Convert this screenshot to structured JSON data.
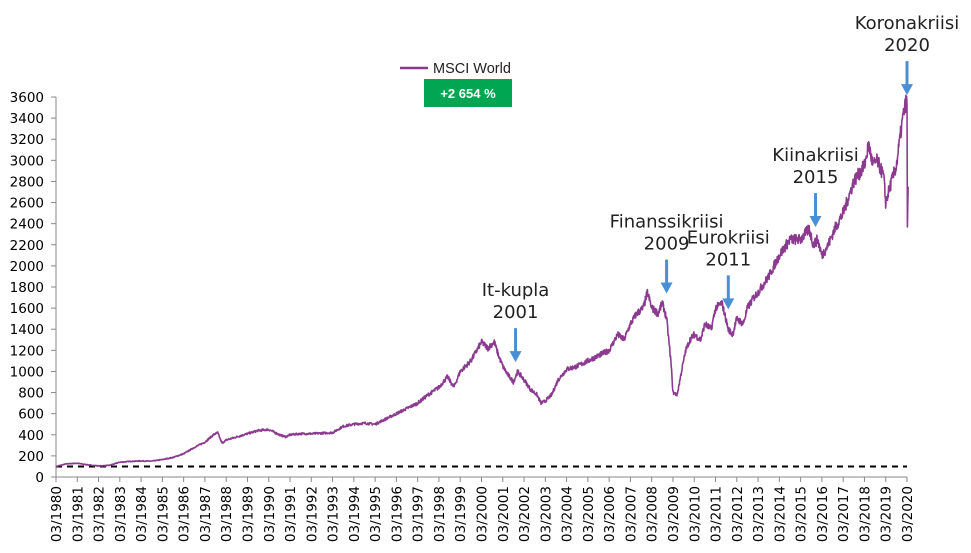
{
  "chart_data": {
    "type": "line",
    "title": "",
    "xlabel": "",
    "ylabel": "",
    "ylim": [
      0,
      3600
    ],
    "yticks": [
      0,
      200,
      400,
      600,
      800,
      1000,
      1200,
      1400,
      1600,
      1800,
      2000,
      2200,
      2400,
      2600,
      2800,
      3000,
      3200,
      3400,
      3600
    ],
    "xlim": [
      1980.0,
      2020.0
    ],
    "x_tick_labels": [
      "03/1980",
      "03/1981",
      "03/1982",
      "03/1983",
      "03/1984",
      "03/1985",
      "03/1986",
      "03/1987",
      "03/1988",
      "03/1989",
      "03/1990",
      "03/1991",
      "03/1992",
      "03/1993",
      "03/1994",
      "03/1995",
      "03/1996",
      "03/1997",
      "03/1998",
      "03/1999",
      "03/2000",
      "03/2001",
      "03/2002",
      "03/2003",
      "03/2004",
      "03/2005",
      "03/2006",
      "03/2007",
      "03/2008",
      "03/2009",
      "03/2010",
      "03/2011",
      "03/2012",
      "03/2013",
      "03/2014",
      "03/2015",
      "03/2016",
      "03/2017",
      "03/2018",
      "03/2019",
      "03/2020"
    ],
    "legend": {
      "position": "top-center",
      "label": "MSCI World"
    },
    "badge": {
      "text": "+2 654 %",
      "color": "#00a651"
    },
    "baseline": {
      "value": 100,
      "style": "dashed"
    },
    "colors": {
      "series": "#8b3a8f",
      "arrow": "#4a8fd6",
      "baseline": "#000000"
    },
    "series": [
      {
        "name": "MSCI World",
        "x": [
          1980.0,
          1980.5,
          1981.0,
          1981.5,
          1982.0,
          1982.5,
          1983.0,
          1983.5,
          1984.0,
          1984.5,
          1985.0,
          1985.5,
          1986.0,
          1986.5,
          1987.0,
          1987.4,
          1987.6,
          1987.8,
          1988.0,
          1988.5,
          1989.0,
          1989.5,
          1990.0,
          1990.5,
          1990.8,
          1991.0,
          1991.5,
          1992.0,
          1992.5,
          1993.0,
          1993.5,
          1994.0,
          1994.5,
          1995.0,
          1995.5,
          1996.0,
          1996.5,
          1997.0,
          1997.5,
          1998.0,
          1998.4,
          1998.7,
          1999.0,
          1999.5,
          2000.0,
          2000.3,
          2000.6,
          2000.8,
          2001.0,
          2001.2,
          2001.5,
          2001.7,
          2002.0,
          2002.3,
          2002.6,
          2002.8,
          2003.0,
          2003.3,
          2003.6,
          2004.0,
          2004.5,
          2005.0,
          2005.5,
          2006.0,
          2006.4,
          2006.7,
          2007.0,
          2007.3,
          2007.6,
          2007.8,
          2008.0,
          2008.3,
          2008.5,
          2008.7,
          2008.9,
          2009.0,
          2009.2,
          2009.4,
          2009.6,
          2009.8,
          2010.0,
          2010.3,
          2010.5,
          2010.8,
          2011.0,
          2011.3,
          2011.6,
          2011.8,
          2012.0,
          2012.3,
          2012.5,
          2012.8,
          2013.0,
          2013.5,
          2014.0,
          2014.5,
          2015.0,
          2015.4,
          2015.6,
          2015.8,
          2016.0,
          2016.3,
          2016.6,
          2017.0,
          2017.5,
          2018.0,
          2018.2,
          2018.4,
          2018.6,
          2018.9,
          2019.0,
          2019.2,
          2019.5,
          2019.8,
          2019.95,
          2020.0,
          2020.02,
          2020.05
        ],
        "values": [
          100,
          125,
          130,
          115,
          105,
          110,
          140,
          148,
          152,
          150,
          165,
          185,
          220,
          280,
          330,
          400,
          420,
          320,
          350,
          380,
          410,
          440,
          450,
          400,
          380,
          400,
          410,
          410,
          415,
          420,
          480,
          500,
          510,
          500,
          550,
          600,
          650,
          700,
          780,
          850,
          950,
          850,
          1000,
          1100,
          1280,
          1220,
          1280,
          1150,
          1050,
          980,
          900,
          1000,
          920,
          830,
          780,
          700,
          720,
          780,
          920,
          1020,
          1050,
          1100,
          1150,
          1200,
          1350,
          1300,
          1450,
          1550,
          1600,
          1750,
          1600,
          1550,
          1650,
          1500,
          1100,
          800,
          780,
          1000,
          1200,
          1300,
          1350,
          1300,
          1450,
          1400,
          1600,
          1650,
          1400,
          1350,
          1500,
          1450,
          1600,
          1700,
          1750,
          1900,
          2100,
          2250,
          2250,
          2350,
          2200,
          2250,
          2100,
          2200,
          2350,
          2500,
          2800,
          2950,
          3150,
          2950,
          3000,
          2850,
          2600,
          2750,
          2950,
          3400,
          3550,
          3550,
          2350,
          2750
        ]
      }
    ],
    "annotations": [
      {
        "lines": [
          "It-kupla",
          "2001"
        ],
        "x": 2001.6,
        "y": 1050
      },
      {
        "lines": [
          "Finanssikriisi",
          "2009"
        ],
        "x": 2008.7,
        "y": 1700
      },
      {
        "lines": [
          "Eurokriisi",
          "2011"
        ],
        "x": 2011.6,
        "y": 1550
      },
      {
        "lines": [
          "Kiinakriisi",
          "2015"
        ],
        "x": 2015.7,
        "y": 2330
      },
      {
        "lines": [
          "Koronakriisi",
          "2020"
        ],
        "x": 2020.0,
        "y": 3580
      }
    ]
  }
}
